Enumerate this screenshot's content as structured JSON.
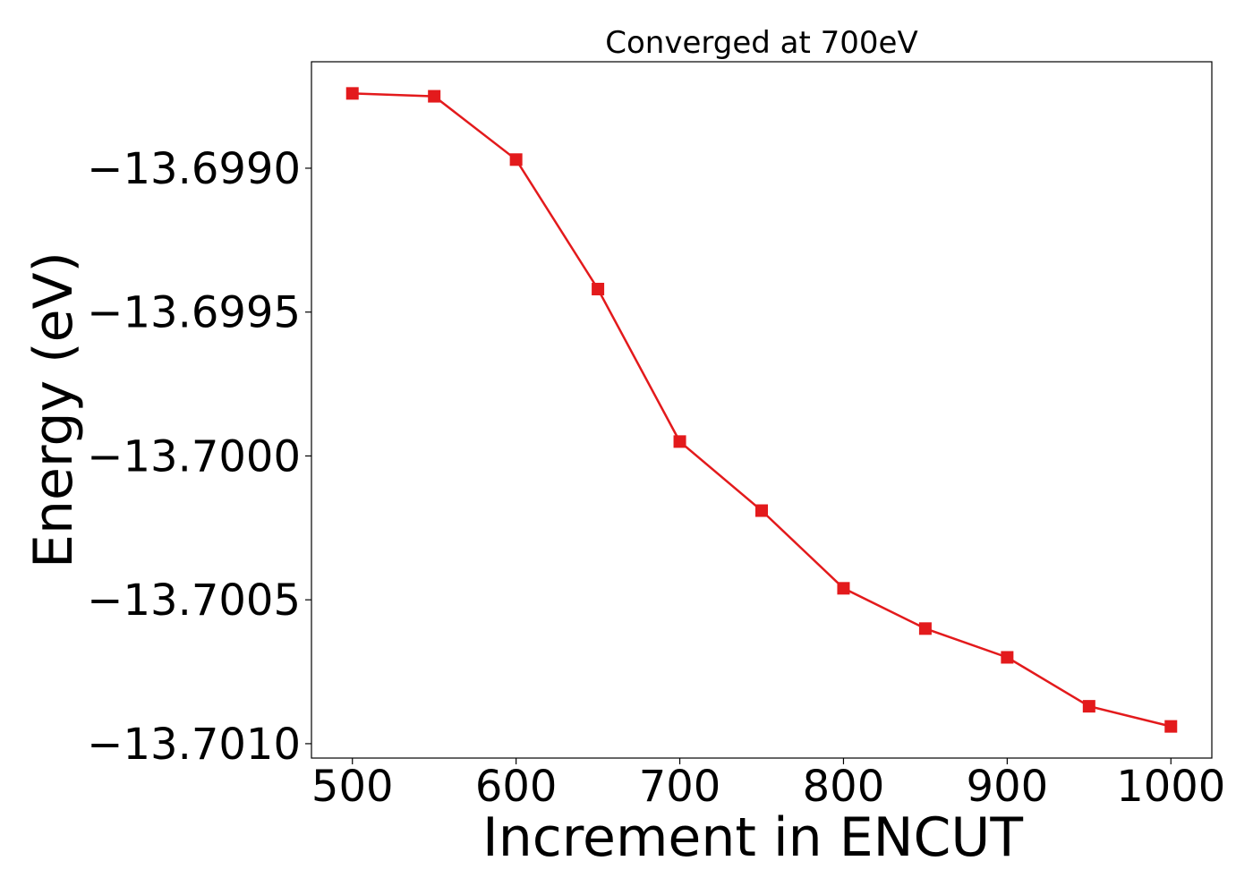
{
  "chart_data": {
    "type": "line",
    "title": "Converged at 700eV",
    "xlabel": "Increment in ENCUT",
    "ylabel": "Energy (eV)",
    "xlim": [
      475,
      1025
    ],
    "ylim": [
      -13.70105,
      -13.69863
    ],
    "x_ticks": [
      500,
      600,
      700,
      800,
      900,
      1000
    ],
    "x_tick_labels": [
      "500",
      "600",
      "700",
      "800",
      "900",
      "1000"
    ],
    "y_ticks": [
      -13.699,
      -13.6995,
      -13.7,
      -13.7005,
      -13.701
    ],
    "y_tick_labels": [
      "−13.6990",
      "−13.6995",
      "−13.7000",
      "−13.7005",
      "−13.7010"
    ],
    "grid": false,
    "series": [
      {
        "color": "#e31a1c",
        "marker": "square",
        "x": [
          500,
          550,
          600,
          650,
          700,
          750,
          800,
          850,
          900,
          950,
          1000
        ],
        "y": [
          -13.69874,
          -13.69875,
          -13.69897,
          -13.69942,
          -13.69995,
          -13.70019,
          -13.70046,
          -13.7006,
          -13.7007,
          -13.70087,
          -13.70094
        ]
      }
    ]
  }
}
